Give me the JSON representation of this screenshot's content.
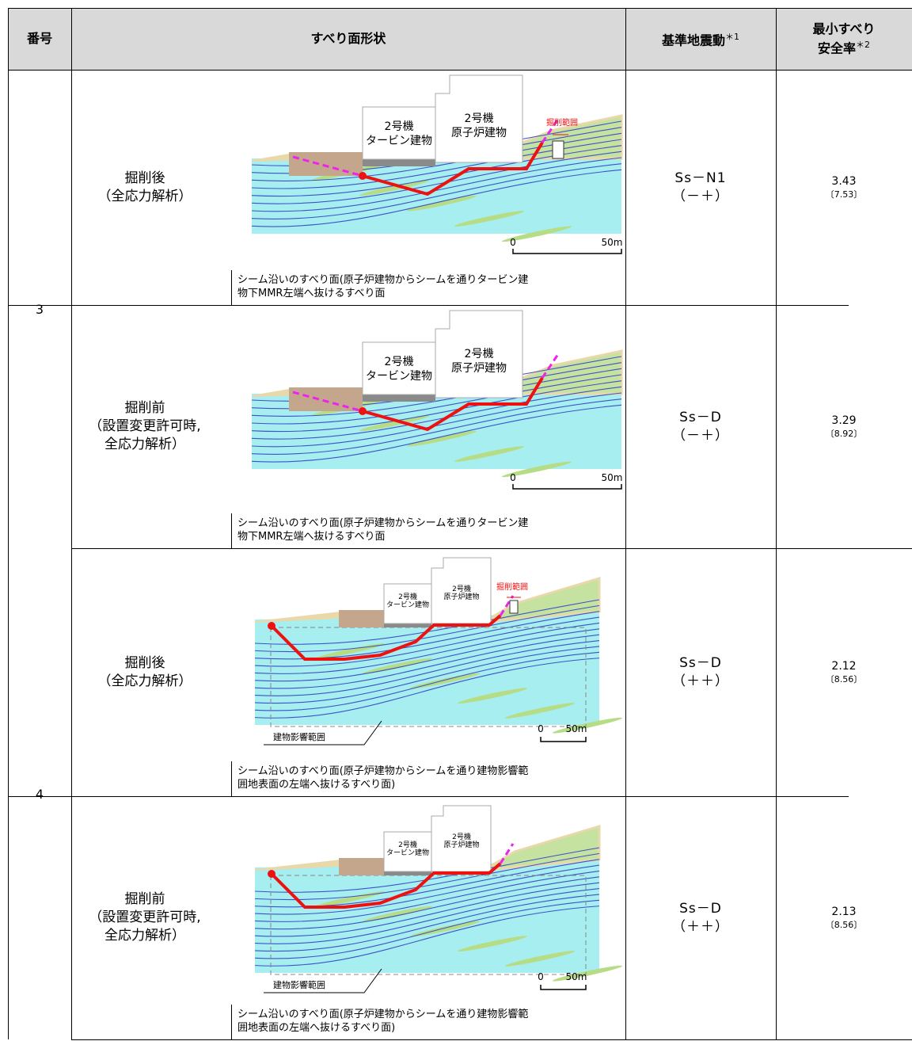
{
  "header": {
    "number": "番号",
    "shape": "すべり面形状",
    "motion": "基準地震動",
    "motion_note": "＊1",
    "factor_lines": [
      "最小すべり",
      "安全率"
    ],
    "factor_note": "＊2"
  },
  "groups": [
    {
      "number": "3",
      "cases": [
        {
          "condition": [
            "掘削後",
            "（全応力解析）"
          ],
          "diagram": {
            "turbine": [
              "2号機",
              "タービン建物"
            ],
            "reactor": [
              "2号機",
              "原子炉建物"
            ],
            "excavation": "掘削範囲",
            "scale": [
              "0",
              "50m"
            ]
          },
          "caption": [
            "シーム沿いのすべり面(原子炉建物からシームを通りタービン建",
            "物下MMR左端へ抜けるすべり面"
          ],
          "motion": [
            "Ss－N1",
            "（－＋）"
          ],
          "factor": "3.43",
          "factor_sub": "〔7.53〕"
        },
        {
          "condition": [
            "掘削前",
            "（設置変更許可時,",
            "全応力解析）"
          ],
          "diagram": {
            "turbine": [
              "2号機",
              "タービン建物"
            ],
            "reactor": [
              "2号機",
              "原子炉建物"
            ],
            "scale": [
              "0",
              "50m"
            ]
          },
          "caption": [
            "シーム沿いのすべり面(原子炉建物からシームを通りタービン建",
            "物下MMR左端へ抜けるすべり面"
          ],
          "motion": [
            "Ss－D",
            "（－＋）"
          ],
          "factor": "3.29",
          "factor_sub": "〔8.92〕"
        }
      ]
    },
    {
      "number": "4",
      "cases": [
        {
          "condition": [
            "掘削後",
            "（全応力解析）"
          ],
          "diagram": {
            "turbine": [
              "2号機",
              "タービン建物"
            ],
            "reactor": [
              "2号機",
              "原子炉建物"
            ],
            "excavation": "掘削範囲",
            "scale": [
              "0",
              "50m"
            ],
            "influence": "建物影響範囲"
          },
          "caption": [
            "シーム沿いのすべり面(原子炉建物からシームを通り建物影響範",
            "囲地表面の左端へ抜けるすべり面)"
          ],
          "motion": [
            "Ss－D",
            "（＋＋）"
          ],
          "factor": "2.12",
          "factor_sub": "〔8.56〕"
        },
        {
          "condition": [
            "掘削前",
            "（設置変更許可時,",
            "全応力解析）"
          ],
          "diagram": {
            "turbine": [
              "2号機",
              "タービン建物"
            ],
            "reactor": [
              "2号機",
              "原子炉建物"
            ],
            "scale": [
              "0",
              "50m"
            ],
            "influence": "建物影響範囲"
          },
          "caption": [
            "シーム沿いのすべり面(原子炉建物からシームを通り建物影響範",
            "囲地表面の左端へ抜けるすべり面)"
          ],
          "motion": [
            "Ss－D",
            "（＋＋）"
          ],
          "factor": "2.13",
          "factor_sub": "〔8.56〕"
        }
      ]
    }
  ]
}
